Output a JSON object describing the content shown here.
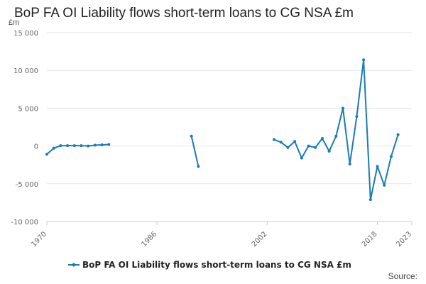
{
  "title": "BoP FA OI Liability flows short-term loans to CG NSA £m",
  "unit_label": "£m",
  "source_label": "Source:",
  "colors": {
    "series": "#1a7cb4",
    "grid": "#e6e6e6",
    "axis": "#cccccc"
  },
  "chart_data": {
    "type": "line",
    "title": "BoP FA OI Liability flows short-term loans to CG NSA £m",
    "xlabel": "",
    "ylabel": "£m",
    "xlim": [
      1970,
      2023
    ],
    "ylim": [
      -10000,
      15000
    ],
    "y_ticks": [
      -10000,
      -5000,
      0,
      5000,
      10000,
      15000
    ],
    "y_tick_labels": [
      "-10 000",
      "-5 000",
      "0",
      "5 000",
      "10 000",
      "15 000"
    ],
    "x_tick_labels": [
      "1970",
      "1986",
      "2002",
      "2018",
      "2023"
    ],
    "grid": true,
    "legend_position": "bottom",
    "series": [
      {
        "name": "BoP FA OI Liability flows short-term loans to CG NSA £m",
        "points": [
          [
            1970,
            -1100
          ],
          [
            1971,
            -300
          ],
          [
            1972,
            50
          ],
          [
            1973,
            50
          ],
          [
            1974,
            50
          ],
          [
            1975,
            50
          ],
          [
            1976,
            0
          ],
          [
            1977,
            100
          ],
          [
            1978,
            150
          ],
          [
            1979,
            200
          ],
          [
            1980,
            null
          ],
          [
            1983,
            null
          ],
          [
            1984,
            null
          ],
          [
            1985,
            null
          ],
          [
            1986,
            null
          ],
          [
            1987,
            null
          ],
          [
            1988,
            null
          ],
          [
            1989,
            null
          ],
          [
            1990,
            null
          ],
          [
            1991,
            1300
          ],
          [
            1992,
            -2700
          ],
          [
            1993,
            null
          ],
          [
            2003,
            850
          ],
          [
            2004,
            500
          ],
          [
            2005,
            -200
          ],
          [
            2006,
            600
          ],
          [
            2007,
            -1600
          ],
          [
            2008,
            0
          ],
          [
            2009,
            -200
          ],
          [
            2010,
            1000
          ],
          [
            2011,
            -700
          ],
          [
            2012,
            1300
          ],
          [
            2013,
            5000
          ],
          [
            2014,
            -2400
          ],
          [
            2015,
            3900
          ],
          [
            2016,
            11400
          ],
          [
            2017,
            -7100
          ],
          [
            2018,
            -2700
          ],
          [
            2019,
            -5200
          ],
          [
            2020,
            -1400
          ],
          [
            2021,
            1500
          ]
        ]
      }
    ]
  }
}
